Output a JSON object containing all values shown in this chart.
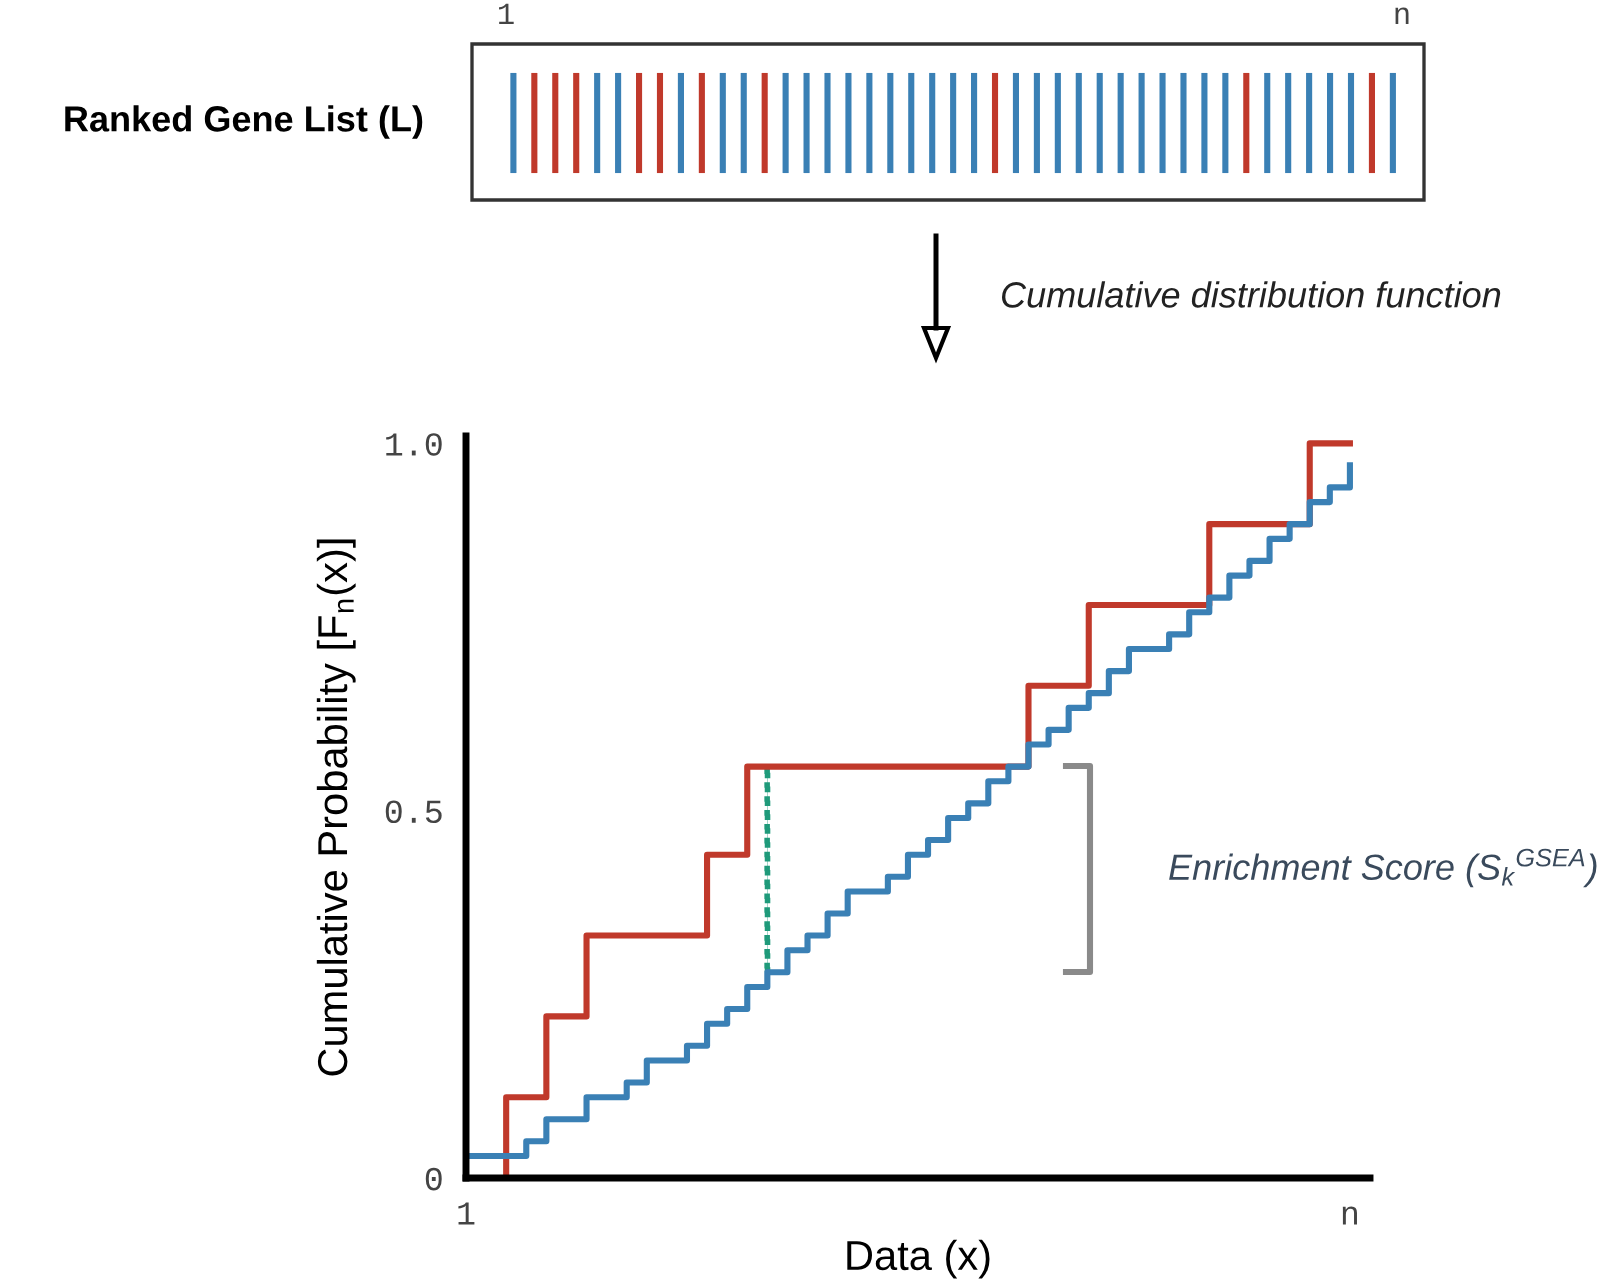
{
  "chart_data": {
    "type": "step",
    "xlabel": "Data (x)",
    "ylabel": "Cumulative Probability [F$_{n}$(x)]",
    "annotations": [
      "Ranked Gene List (L)",
      "1",
      "n",
      "Cumulative distribution function",
      "Enrichment Score (S$_{k}$$^{GSEA}$)"
    ],
    "categories": [
      "1",
      null,
      null,
      null,
      null,
      null,
      null,
      null,
      null,
      null,
      null,
      null,
      null,
      null,
      null,
      null,
      null,
      null,
      null,
      null,
      null,
      null,
      null,
      null,
      null,
      null,
      null,
      null,
      null,
      null,
      null,
      null,
      null,
      null,
      null,
      null,
      null,
      null,
      null,
      null,
      null,
      null,
      null,
      null,
      "n"
    ],
    "series": [
      {
        "color": "#c0392b",
        "values": [
          0,
          0,
          0.11,
          0.11,
          0.22,
          0.22,
          0.33,
          0.33,
          0.33,
          0.33,
          0.33,
          0.33,
          0.44,
          0.44,
          0.56,
          0.56,
          0.56,
          0.56,
          0.56,
          0.56,
          0.56,
          0.56,
          0.56,
          0.56,
          0.56,
          0.56,
          0.56,
          0.56,
          0.67,
          0.67,
          0.67,
          0.78,
          0.78,
          0.78,
          0.78,
          0.78,
          0.78,
          0.89,
          0.89,
          0.89,
          0.89,
          0.89,
          1.0,
          1.0,
          1.0
        ]
      },
      {
        "color": "#3a80b5",
        "values": [
          0.03,
          0.03,
          0.03,
          0.05,
          0.08,
          0.08,
          0.11,
          0.11,
          0.13,
          0.16,
          0.16,
          0.18,
          0.21,
          0.23,
          0.26,
          0.28,
          0.31,
          0.33,
          0.36,
          0.39,
          0.39,
          0.41,
          0.44,
          0.46,
          0.49,
          0.51,
          0.54,
          0.56,
          0.59,
          0.61,
          0.64,
          0.66,
          0.69,
          0.72,
          0.72,
          0.74,
          0.77,
          0.79,
          0.82,
          0.84,
          0.87,
          0.89,
          0.92,
          0.94,
          0.97
        ]
      },
      {
        "type": "bar",
        "color": "#1f9a7a",
        "line_style": "dotted",
        "base": [
          null,
          null,
          null,
          null,
          null,
          null,
          null,
          null,
          null,
          null,
          null,
          null,
          null,
          null,
          null,
          0.28,
          null,
          null,
          null,
          null,
          null,
          null,
          null,
          null,
          null,
          null,
          null,
          null,
          null,
          null,
          null,
          null,
          null,
          null,
          null,
          null,
          null,
          null,
          null,
          null,
          null,
          null,
          null,
          null,
          null
        ],
        "values": [
          null,
          null,
          null,
          null,
          null,
          null,
          null,
          null,
          null,
          null,
          null,
          null,
          null,
          null,
          null,
          0.28,
          null,
          null,
          null,
          null,
          null,
          null,
          null,
          null,
          null,
          null,
          null,
          null,
          null,
          null,
          null,
          null,
          null,
          null,
          null,
          null,
          null,
          null,
          null,
          null,
          null,
          null,
          null,
          null,
          null
        ]
      }
    ],
    "ylim": [
      0,
      1.01
    ],
    "yticks": [
      {
        "value": 0,
        "label": "0"
      },
      0.5,
      {
        "value": 1.0,
        "label": "1.0"
      }
    ],
    "grid": false,
    "legend": false,
    "marker": "none",
    "line_style": "solid"
  }
}
